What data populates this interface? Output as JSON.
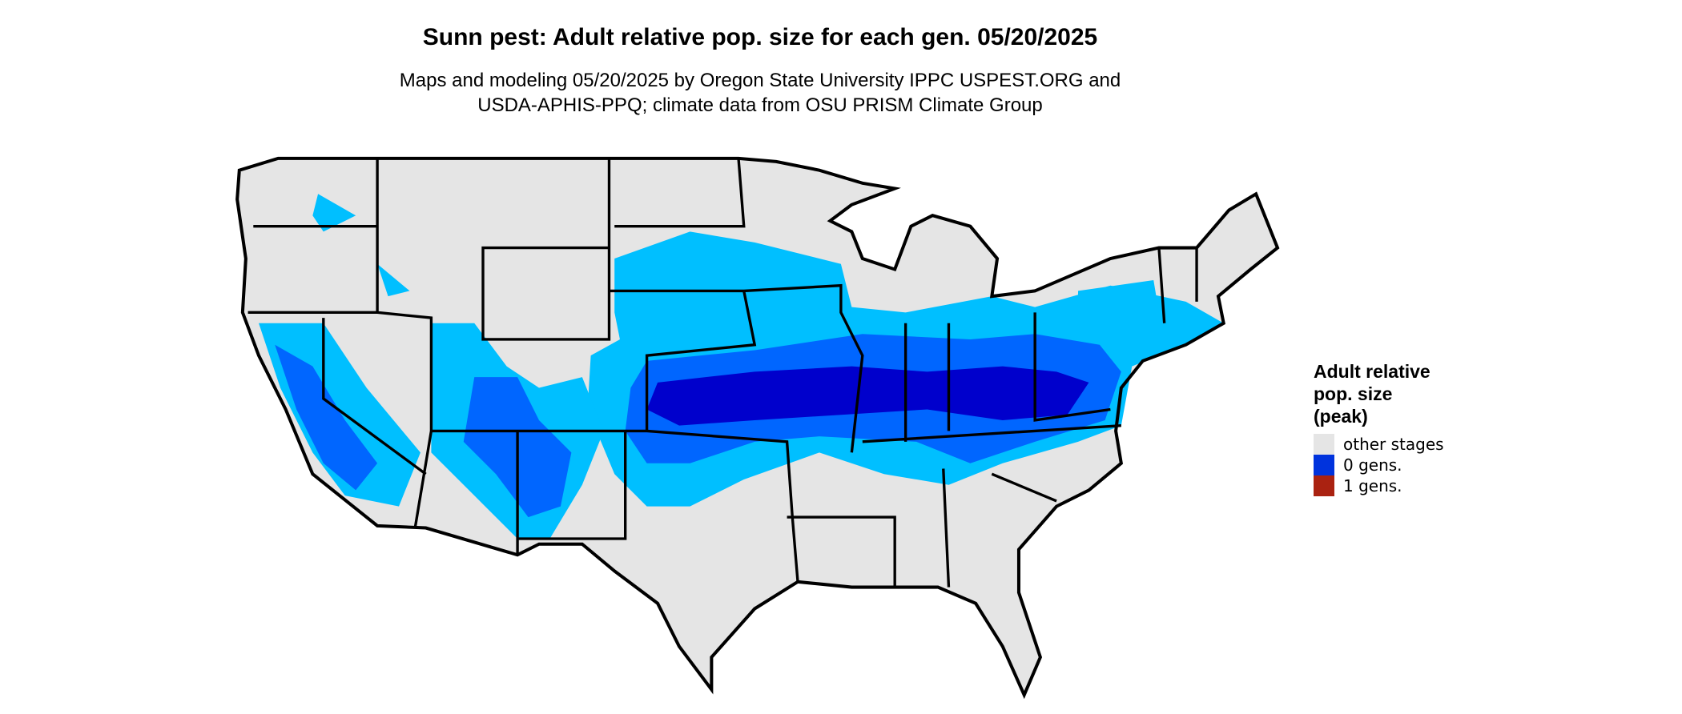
{
  "title": "Sunn pest: Adult relative pop. size for each gen. 05/20/2025",
  "subtitle": [
    "Maps and modeling 05/20/2025 by Oregon State University IPPC USPEST.ORG and",
    "USDA-APHIS-PPQ; climate data from OSU PRISM Climate Group"
  ],
  "legend": {
    "title": [
      "Adult relative",
      "pop. size",
      "(peak)"
    ],
    "items": [
      {
        "label": "other stages",
        "color": "#e5e5e5"
      },
      {
        "label": "0 gens.",
        "color": "#0033dd"
      },
      {
        "label": "1 gens.",
        "color": "#aa2211"
      }
    ]
  }
}
